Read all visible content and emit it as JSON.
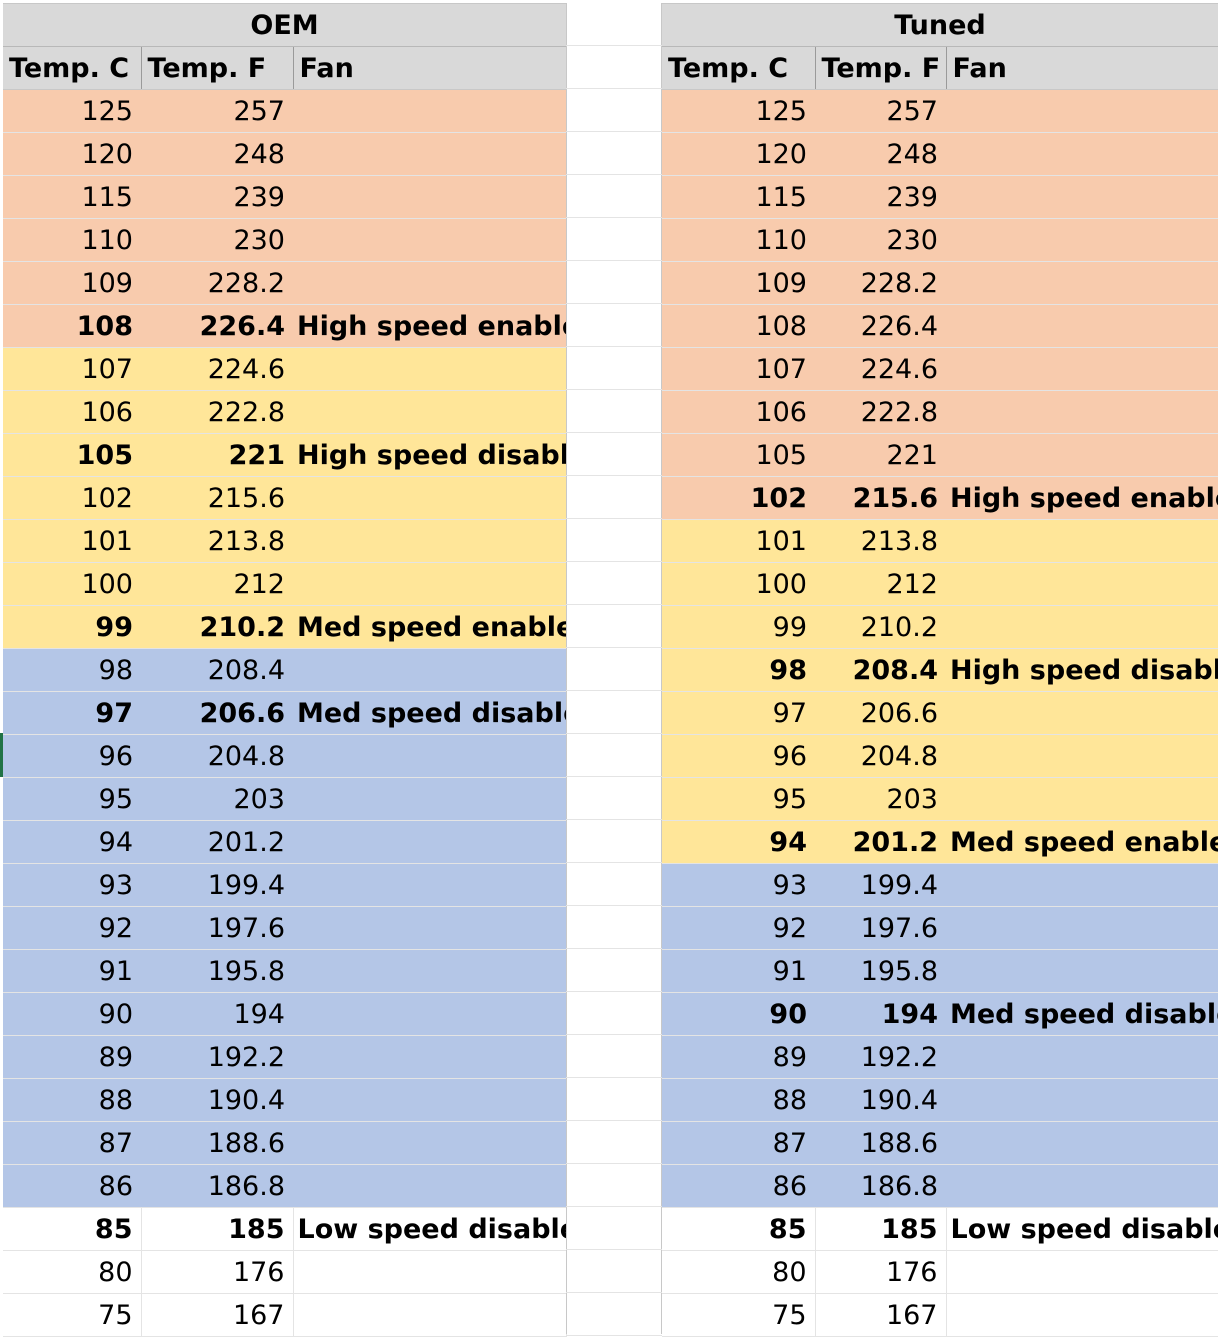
{
  "oem": {
    "title": "OEM",
    "headers": [
      "Temp. C",
      "Temp. F",
      "Fan"
    ],
    "rows": [
      {
        "c": "125",
        "f": "257",
        "fan": "",
        "band": "hot",
        "bold": false
      },
      {
        "c": "120",
        "f": "248",
        "fan": "",
        "band": "hot",
        "bold": false
      },
      {
        "c": "115",
        "f": "239",
        "fan": "",
        "band": "hot",
        "bold": false
      },
      {
        "c": "110",
        "f": "230",
        "fan": "",
        "band": "hot",
        "bold": false
      },
      {
        "c": "109",
        "f": "228.2",
        "fan": "",
        "band": "hot",
        "bold": false
      },
      {
        "c": "108",
        "f": "226.4",
        "fan": "High speed enable",
        "band": "hot",
        "bold": true
      },
      {
        "c": "107",
        "f": "224.6",
        "fan": "",
        "band": "warm",
        "bold": false
      },
      {
        "c": "106",
        "f": "222.8",
        "fan": "",
        "band": "warm",
        "bold": false
      },
      {
        "c": "105",
        "f": "221",
        "fan": "High speed disable",
        "band": "warm",
        "bold": true
      },
      {
        "c": "102",
        "f": "215.6",
        "fan": "",
        "band": "warm",
        "bold": false
      },
      {
        "c": "101",
        "f": "213.8",
        "fan": "",
        "band": "warm",
        "bold": false
      },
      {
        "c": "100",
        "f": "212",
        "fan": "",
        "band": "warm",
        "bold": false
      },
      {
        "c": "99",
        "f": "210.2",
        "fan": "Med speed enable",
        "band": "warm",
        "bold": true
      },
      {
        "c": "98",
        "f": "208.4",
        "fan": "",
        "band": "cool",
        "bold": false
      },
      {
        "c": "97",
        "f": "206.6",
        "fan": "Med speed disable",
        "band": "cool",
        "bold": true
      },
      {
        "c": "96",
        "f": "204.8",
        "fan": "",
        "band": "cool",
        "bold": false
      },
      {
        "c": "95",
        "f": "203",
        "fan": "",
        "band": "cool",
        "bold": false
      },
      {
        "c": "94",
        "f": "201.2",
        "fan": "",
        "band": "cool",
        "bold": false
      },
      {
        "c": "93",
        "f": "199.4",
        "fan": "",
        "band": "cool",
        "bold": false
      },
      {
        "c": "92",
        "f": "197.6",
        "fan": "",
        "band": "cool",
        "bold": false
      },
      {
        "c": "91",
        "f": "195.8",
        "fan": "",
        "band": "cool",
        "bold": false
      },
      {
        "c": "90",
        "f": "194",
        "fan": "",
        "band": "cool",
        "bold": false
      },
      {
        "c": "89",
        "f": "192.2",
        "fan": "",
        "band": "cool",
        "bold": false
      },
      {
        "c": "88",
        "f": "190.4",
        "fan": "",
        "band": "cool",
        "bold": false
      },
      {
        "c": "87",
        "f": "188.6",
        "fan": "",
        "band": "cool",
        "bold": false
      },
      {
        "c": "86",
        "f": "186.8",
        "fan": "",
        "band": "cool",
        "bold": false
      },
      {
        "c": "85",
        "f": "185",
        "fan": "Low speed disable",
        "band": "none",
        "bold": true
      },
      {
        "c": "80",
        "f": "176",
        "fan": "",
        "band": "none",
        "bold": false
      },
      {
        "c": "75",
        "f": "167",
        "fan": "",
        "band": "none",
        "bold": false
      }
    ]
  },
  "tuned": {
    "title": "Tuned",
    "headers": [
      "Temp. C",
      "Temp. F",
      "Fan"
    ],
    "rows": [
      {
        "c": "125",
        "f": "257",
        "fan": "",
        "band": "hot",
        "bold": false
      },
      {
        "c": "120",
        "f": "248",
        "fan": "",
        "band": "hot",
        "bold": false
      },
      {
        "c": "115",
        "f": "239",
        "fan": "",
        "band": "hot",
        "bold": false
      },
      {
        "c": "110",
        "f": "230",
        "fan": "",
        "band": "hot",
        "bold": false
      },
      {
        "c": "109",
        "f": "228.2",
        "fan": "",
        "band": "hot",
        "bold": false
      },
      {
        "c": "108",
        "f": "226.4",
        "fan": "",
        "band": "hot",
        "bold": false
      },
      {
        "c": "107",
        "f": "224.6",
        "fan": "",
        "band": "hot",
        "bold": false
      },
      {
        "c": "106",
        "f": "222.8",
        "fan": "",
        "band": "hot",
        "bold": false
      },
      {
        "c": "105",
        "f": "221",
        "fan": "",
        "band": "hot",
        "bold": false
      },
      {
        "c": "102",
        "f": "215.6",
        "fan": "High speed enable",
        "band": "hot",
        "bold": true
      },
      {
        "c": "101",
        "f": "213.8",
        "fan": "",
        "band": "warm",
        "bold": false
      },
      {
        "c": "100",
        "f": "212",
        "fan": "",
        "band": "warm",
        "bold": false
      },
      {
        "c": "99",
        "f": "210.2",
        "fan": "",
        "band": "warm",
        "bold": false
      },
      {
        "c": "98",
        "f": "208.4",
        "fan": "High speed disable",
        "band": "warm",
        "bold": true
      },
      {
        "c": "97",
        "f": "206.6",
        "fan": "",
        "band": "warm",
        "bold": false
      },
      {
        "c": "96",
        "f": "204.8",
        "fan": "",
        "band": "warm",
        "bold": false
      },
      {
        "c": "95",
        "f": "203",
        "fan": "",
        "band": "warm",
        "bold": false
      },
      {
        "c": "94",
        "f": "201.2",
        "fan": "Med speed enable",
        "band": "warm",
        "bold": true
      },
      {
        "c": "93",
        "f": "199.4",
        "fan": "",
        "band": "cool",
        "bold": false
      },
      {
        "c": "92",
        "f": "197.6",
        "fan": "",
        "band": "cool",
        "bold": false
      },
      {
        "c": "91",
        "f": "195.8",
        "fan": "",
        "band": "cool",
        "bold": false
      },
      {
        "c": "90",
        "f": "194",
        "fan": "Med speed disable",
        "band": "cool",
        "bold": true
      },
      {
        "c": "89",
        "f": "192.2",
        "fan": "",
        "band": "cool",
        "bold": false
      },
      {
        "c": "88",
        "f": "190.4",
        "fan": "",
        "band": "cool",
        "bold": false
      },
      {
        "c": "87",
        "f": "188.6",
        "fan": "",
        "band": "cool",
        "bold": false
      },
      {
        "c": "86",
        "f": "186.8",
        "fan": "",
        "band": "cool",
        "bold": false
      },
      {
        "c": "85",
        "f": "185",
        "fan": "Low speed disable",
        "band": "none",
        "bold": true
      },
      {
        "c": "80",
        "f": "176",
        "fan": "",
        "band": "none",
        "bold": false
      },
      {
        "c": "75",
        "f": "167",
        "fan": "",
        "band": "none",
        "bold": false
      }
    ]
  },
  "colors": {
    "hot": "#f8cbad",
    "warm": "#ffe699",
    "cool": "#b4c6e7",
    "header": "#d9d9d9"
  }
}
